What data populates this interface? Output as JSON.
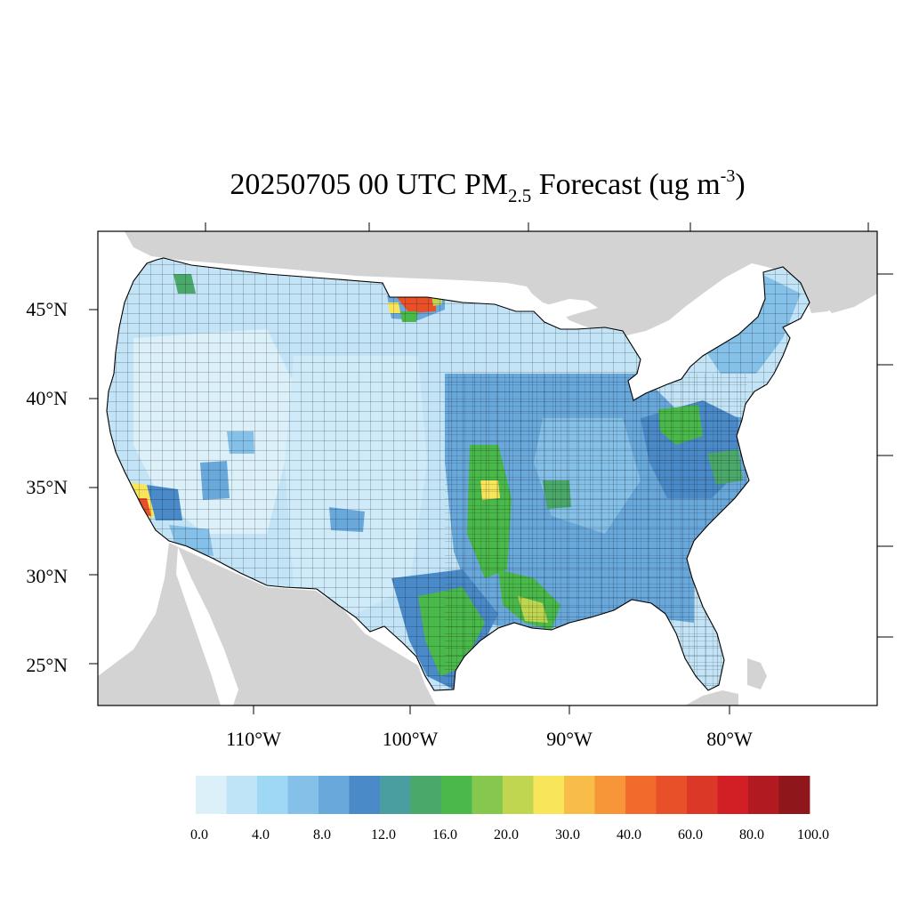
{
  "title": {
    "main": "20250705 00 UTC PM",
    "subscript": "2.5",
    "rest": " Forecast (ug m",
    "superscript": "-3",
    "close": ")"
  },
  "axes": {
    "lat_labels": [
      "45°N",
      "40°N",
      "35°N",
      "30°N",
      "25°N"
    ],
    "lon_labels": [
      "110°W",
      "100°W",
      "90°W",
      "80°W"
    ]
  },
  "colorbar": {
    "labels": [
      "0.0",
      "4.0",
      "8.0",
      "12.0",
      "16.0",
      "20.0",
      "30.0",
      "40.0",
      "60.0",
      "80.0",
      "100.0"
    ],
    "colors": [
      "#dcf0fa",
      "#c0e4f7",
      "#9fd8f5",
      "#84c0e8",
      "#69a8db",
      "#4a8ac8",
      "#4a9ea0",
      "#4aa86a",
      "#4ab84a",
      "#86c84e",
      "#c0d650",
      "#f8e55a",
      "#f8bc48",
      "#f79638",
      "#f26a2c",
      "#e8502a",
      "#dc3828",
      "#d21f26",
      "#b01a20",
      "#8f171c"
    ]
  },
  "colors": {
    "land_outside": "#d3d3d3",
    "water": "#ffffff",
    "base_fill": "#c6e6f8",
    "border": "#000000"
  }
}
